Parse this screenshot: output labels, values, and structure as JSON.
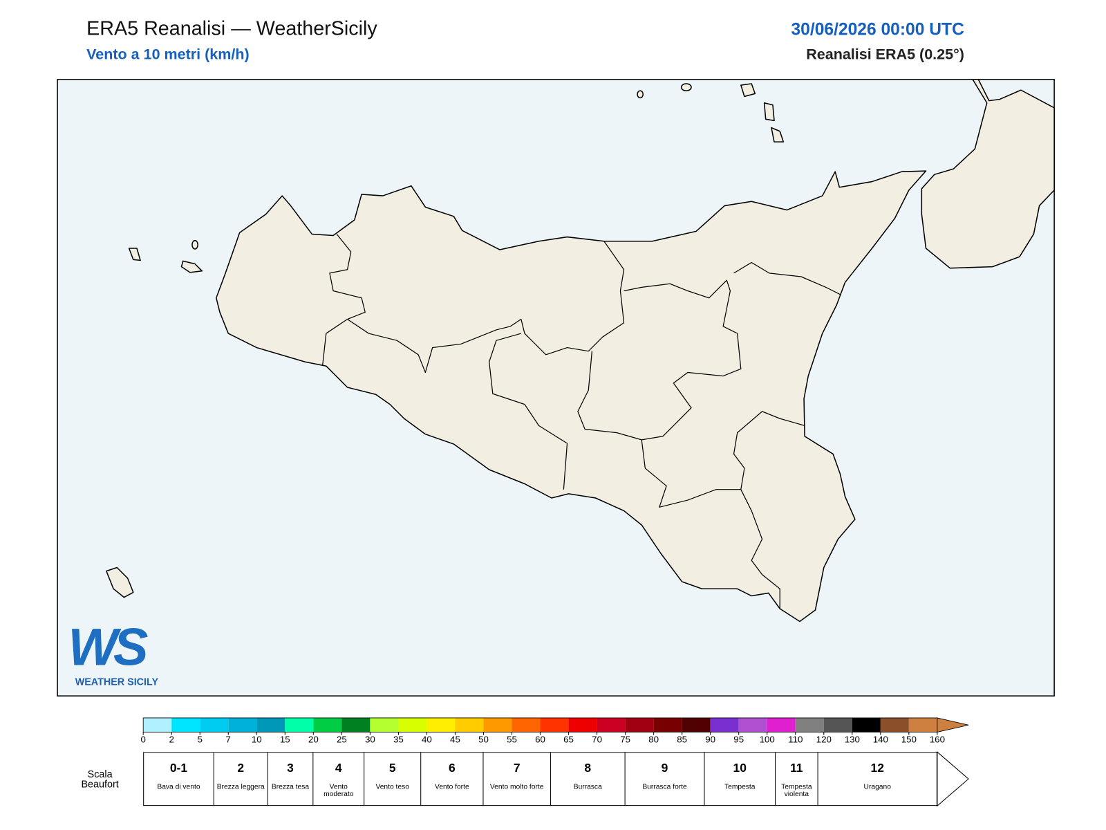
{
  "header": {
    "title": "ERA5 Reanalisi — WeatherSicily",
    "subtitle": "Vento a 10 metri (km/h)",
    "datetime": "30/06/2026 00:00 UTC",
    "source": "Reanalisi ERA5 (0.25°)"
  },
  "logo": {
    "text": "WS",
    "caption": "WEATHER SICILY"
  },
  "colorbar": {
    "ticks": [
      0,
      2,
      5,
      7,
      10,
      15,
      20,
      25,
      30,
      35,
      40,
      45,
      50,
      55,
      60,
      65,
      70,
      75,
      80,
      85,
      90,
      95,
      100,
      110,
      120,
      130,
      140,
      150,
      160
    ],
    "colors": [
      "#b0f0ff",
      "#00e5ff",
      "#00ccf2",
      "#00b2d8",
      "#0098b8",
      "#00ffa8",
      "#00cc44",
      "#008020",
      "#b4ff30",
      "#d8ff00",
      "#ffee00",
      "#ffcc00",
      "#ff9900",
      "#ff6600",
      "#ff3300",
      "#ee0000",
      "#cc0022",
      "#a00012",
      "#780000",
      "#500000",
      "#7a30d0",
      "#b050d0",
      "#e020d0",
      "#808080",
      "#555555",
      "#000000",
      "#8b4f2a",
      "#cd8040"
    ]
  },
  "beaufort": {
    "title": "Scala Beaufort",
    "classes": [
      {
        "number": "0-1",
        "label": "Bava di vento"
      },
      {
        "number": "2",
        "label": "Brezza leggera"
      },
      {
        "number": "3",
        "label": "Brezza tesa"
      },
      {
        "number": "4",
        "label": "Vento moderato"
      },
      {
        "number": "5",
        "label": "Vento teso"
      },
      {
        "number": "6",
        "label": "Vento forte"
      },
      {
        "number": "7",
        "label": "Vento molto forte"
      },
      {
        "number": "8",
        "label": "Burrasca"
      },
      {
        "number": "9",
        "label": "Burrasca forte"
      },
      {
        "number": "10",
        "label": "Tempesta"
      },
      {
        "number": "11",
        "label": "Tempesta violenta"
      },
      {
        "number": "12",
        "label": "Uragano"
      }
    ]
  }
}
